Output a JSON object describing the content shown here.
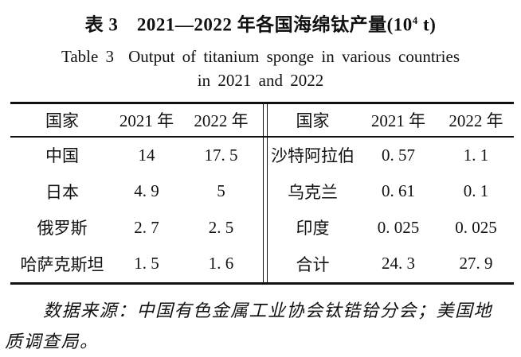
{
  "title": {
    "zh_prefix": "表 3　2021—2022 年各国海绵钛产量(10",
    "zh_sup": "4",
    "zh_suffix": " t)",
    "en_label": "Table 3",
    "en_main": "Output of titanium sponge in various countries",
    "en_line2": "in 2021 and 2022"
  },
  "table": {
    "left": {
      "headers": [
        "国家",
        "2021 年",
        "2022 年"
      ],
      "rows": [
        [
          "中国",
          "14",
          "17. 5"
        ],
        [
          "日本",
          "4. 9",
          "5"
        ],
        [
          "俄罗斯",
          "2. 7",
          "2. 5"
        ],
        [
          "哈萨克斯坦",
          "1. 5",
          "1. 6"
        ]
      ]
    },
    "right": {
      "headers": [
        "国家",
        "2021 年",
        "2022 年"
      ],
      "rows": [
        [
          "沙特阿拉伯",
          "0. 57",
          "1. 1"
        ],
        [
          "乌克兰",
          "0. 61",
          "0. 1"
        ],
        [
          "印度",
          "0. 025",
          "0. 025"
        ],
        [
          "合计",
          "24. 3",
          "27. 9"
        ]
      ]
    }
  },
  "footnote": {
    "line1": "数据来源：中国有色金属工业协会钛锆铪分会；美国地",
    "line2": "质调查局。"
  }
}
